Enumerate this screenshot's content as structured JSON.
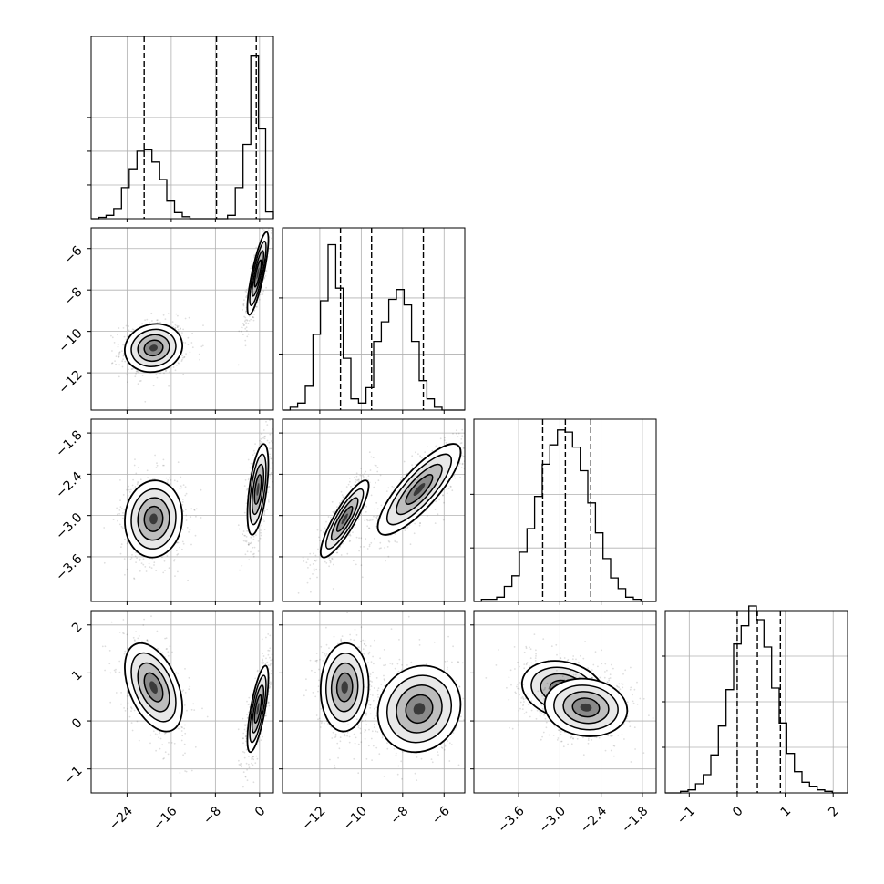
{
  "chart_data": {
    "type": "corner",
    "grid": true,
    "variables": [
      {
        "ticks": [
          -24,
          -16,
          -8,
          0
        ],
        "tick_labels": [
          "−24",
          "−16",
          "−8",
          "0"
        ],
        "range": [
          -30.5,
          2.5
        ],
        "quantiles": [
          -20.9,
          -7.8,
          -0.6
        ],
        "histogram": {
          "bins": [
            -30.5,
            -29.1,
            -27.8,
            -26.4,
            -25.0,
            -23.6,
            -22.2,
            -20.9,
            -19.5,
            -18.1,
            -16.8,
            -15.4,
            -14.0,
            -12.6,
            -11.2,
            -9.9,
            -8.5,
            -7.1,
            -5.8,
            -4.4,
            -3.0,
            -1.6,
            -0.2,
            1.1,
            2.5
          ],
          "counts": [
            0.0,
            0.02,
            0.05,
            0.15,
            0.46,
            0.74,
            1.0,
            1.02,
            0.84,
            0.58,
            0.26,
            0.09,
            0.03,
            0.0,
            0.0,
            0.0,
            0.0,
            0.0,
            0.05,
            0.46,
            1.1,
            2.42,
            1.33,
            0.1
          ]
        }
      },
      {
        "ticks": [
          -12,
          -10,
          -8,
          -6
        ],
        "tick_labels": [
          "−12",
          "−10",
          "−8",
          "−6"
        ],
        "range": [
          -13.8,
          -5.0
        ],
        "quantiles": [
          -11.0,
          -9.5,
          -7.0
        ],
        "histogram": {
          "bins": [
            -13.8,
            -13.43,
            -13.07,
            -12.7,
            -12.33,
            -11.97,
            -11.6,
            -11.23,
            -10.87,
            -10.5,
            -10.13,
            -9.77,
            -9.4,
            -9.03,
            -8.67,
            -8.3,
            -7.93,
            -7.57,
            -7.2,
            -6.83,
            -6.47,
            -6.1,
            -5.73,
            -5.37,
            -5.0
          ],
          "counts": [
            0.0,
            0.02,
            0.05,
            0.17,
            0.54,
            0.78,
            1.18,
            0.87,
            0.37,
            0.08,
            0.05,
            0.16,
            0.49,
            0.63,
            0.79,
            0.86,
            0.75,
            0.49,
            0.21,
            0.08,
            0.02,
            0.0,
            0.0,
            0.0
          ]
        }
      },
      {
        "ticks": [
          -3.6,
          -3.0,
          -2.4,
          -1.8
        ],
        "tick_labels": [
          "−3.6",
          "−3.0",
          "−2.4",
          "−1.8"
        ],
        "range": [
          -4.25,
          -1.6
        ],
        "quantiles": [
          -3.25,
          -2.92,
          -2.55
        ],
        "histogram": {
          "bins": [
            -4.25,
            -4.14,
            -4.029,
            -3.919,
            -3.808,
            -3.698,
            -3.588,
            -3.477,
            -3.367,
            -3.256,
            -3.146,
            -3.035,
            -2.925,
            -2.815,
            -2.704,
            -2.594,
            -2.483,
            -2.373,
            -2.263,
            -2.152,
            -2.042,
            -1.931,
            -1.821,
            -1.71,
            -1.6
          ],
          "counts": [
            0.0,
            0.01,
            0.01,
            0.02,
            0.07,
            0.12,
            0.23,
            0.34,
            0.49,
            0.64,
            0.73,
            0.8,
            0.79,
            0.72,
            0.61,
            0.46,
            0.32,
            0.2,
            0.11,
            0.06,
            0.02,
            0.01,
            0.0,
            0.0
          ]
        }
      },
      {
        "ticks": [
          -1,
          0,
          1,
          2
        ],
        "tick_labels": [
          "−1",
          "0",
          "1",
          "2"
        ],
        "range": [
          -1.5,
          2.3
        ],
        "quantiles": [
          0.0,
          0.42,
          0.9
        ],
        "histogram": {
          "bins": [
            -1.5,
            -1.342,
            -1.183,
            -1.025,
            -0.867,
            -0.708,
            -0.55,
            -0.392,
            -0.233,
            -0.075,
            0.083,
            0.242,
            0.4,
            0.558,
            0.717,
            0.875,
            1.033,
            1.192,
            1.35,
            1.508,
            1.667,
            1.825,
            1.983,
            2.142,
            2.3
          ],
          "counts": [
            0.0,
            0.0,
            0.01,
            0.02,
            0.06,
            0.12,
            0.25,
            0.44,
            0.68,
            0.98,
            1.1,
            1.23,
            1.14,
            0.96,
            0.69,
            0.46,
            0.26,
            0.14,
            0.07,
            0.04,
            0.02,
            0.01,
            0.0,
            0.0
          ]
        }
      }
    ],
    "hist_yticks": [
      [
        0.5,
        1.0,
        1.5
      ],
      [
        0.4,
        0.8
      ],
      [
        0.25,
        0.5
      ],
      [
        0.3,
        0.6,
        0.9
      ]
    ],
    "hist_ymax": [
      2.7,
      1.3,
      0.85,
      1.2
    ],
    "clusters": [
      {
        "x": 1,
        "y": 0,
        "modes": [
          {
            "c": [
              -19.2,
              -10.8
            ],
            "s": [
              2.6,
              0.58
            ],
            "r": 0.1,
            "w": 1.0
          },
          {
            "c": [
              -0.3,
              -7.2
            ],
            "s": [
              0.95,
              1.0
            ],
            "r": 0.82,
            "w": 1.0
          }
        ]
      },
      {
        "x": 2,
        "y": 0,
        "modes": [
          {
            "c": [
              -19.2,
              -3.05
            ],
            "s": [
              2.6,
              0.28
            ],
            "r": 0.05,
            "w": 1.0
          },
          {
            "c": [
              -0.3,
              -2.62
            ],
            "s": [
              0.95,
              0.33
            ],
            "r": 0.55,
            "w": 1.0
          }
        ]
      },
      {
        "x": 2,
        "y": 1,
        "modes": [
          {
            "c": [
              -10.8,
              -3.05
            ],
            "s": [
              0.58,
              0.28
            ],
            "r": 0.86,
            "w": 1.0
          },
          {
            "c": [
              -7.2,
              -2.62
            ],
            "s": [
              1.0,
              0.33
            ],
            "r": 0.82,
            "w": 1.0
          }
        ]
      },
      {
        "x": 3,
        "y": 0,
        "modes": [
          {
            "c": [
              -19.2,
              0.7
            ],
            "s": [
              2.6,
              0.46
            ],
            "r": -0.45,
            "w": 1.0
          },
          {
            "c": [
              -0.3,
              0.25
            ],
            "s": [
              0.95,
              0.45
            ],
            "r": 0.72,
            "w": 1.0
          }
        ]
      },
      {
        "x": 3,
        "y": 1,
        "modes": [
          {
            "c": [
              -10.8,
              0.7
            ],
            "s": [
              0.58,
              0.46
            ],
            "r": 0.05,
            "w": 1.0
          },
          {
            "c": [
              -7.2,
              0.25
            ],
            "s": [
              1.0,
              0.45
            ],
            "r": 0.1,
            "w": 1.0
          }
        ]
      },
      {
        "x": 3,
        "y": 2,
        "modes": [
          {
            "c": [
              -2.95,
              0.65
            ],
            "s": [
              0.3,
              0.3
            ],
            "r": -0.2,
            "w": 1.0
          },
          {
            "c": [
              -2.62,
              0.28
            ],
            "s": [
              0.3,
              0.3
            ],
            "r": -0.1,
            "w": 0.8
          }
        ]
      }
    ],
    "contour_levels": [
      0.15,
      0.4,
      0.7,
      0.92
    ]
  }
}
